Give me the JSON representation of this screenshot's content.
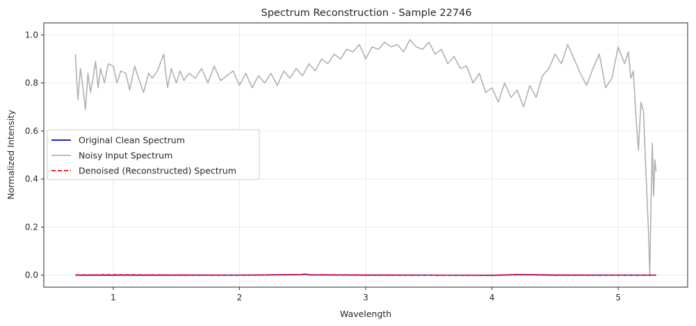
{
  "chart_data": {
    "type": "line",
    "title": "Spectrum Reconstruction - Sample 22746",
    "xlabel": "Wavelength",
    "ylabel": "Normalized Intensity",
    "xlim": [
      0.45,
      5.55
    ],
    "ylim": [
      -0.05,
      1.05
    ],
    "xticks": [
      1,
      2,
      3,
      4,
      5
    ],
    "yticks": [
      0.0,
      0.2,
      0.4,
      0.6,
      0.8,
      1.0
    ],
    "xtick_labels": [
      "1",
      "2",
      "3",
      "4",
      "5"
    ],
    "ytick_labels": [
      "0.0",
      "0.2",
      "0.4",
      "0.6",
      "0.8",
      "1.0"
    ],
    "grid": true,
    "legend_position": "center-left",
    "series": [
      {
        "name": "Original Clean Spectrum",
        "color": "#0000cc",
        "style": "solid",
        "x": [
          0.7,
          1.0,
          1.5,
          2.0,
          2.5,
          2.52,
          2.55,
          3.0,
          3.5,
          4.0,
          4.2,
          4.5,
          5.0,
          5.3
        ],
        "y": [
          0.0,
          0.0,
          0.0,
          0.0,
          0.002,
          0.004,
          0.001,
          0.0,
          0.0,
          -0.001,
          0.002,
          0.0,
          0.0,
          0.0
        ]
      },
      {
        "name": "Noisy Input Spectrum",
        "color": "#b0b0b0",
        "style": "solid",
        "x": [
          0.7,
          0.72,
          0.74,
          0.76,
          0.78,
          0.8,
          0.82,
          0.84,
          0.86,
          0.88,
          0.9,
          0.93,
          0.96,
          1.0,
          1.03,
          1.06,
          1.1,
          1.13,
          1.17,
          1.2,
          1.24,
          1.28,
          1.31,
          1.35,
          1.4,
          1.43,
          1.46,
          1.5,
          1.53,
          1.56,
          1.6,
          1.65,
          1.7,
          1.75,
          1.8,
          1.85,
          1.9,
          1.95,
          2.0,
          2.05,
          2.1,
          2.15,
          2.2,
          2.25,
          2.3,
          2.35,
          2.4,
          2.45,
          2.5,
          2.55,
          2.6,
          2.65,
          2.7,
          2.75,
          2.8,
          2.85,
          2.9,
          2.95,
          3.0,
          3.05,
          3.1,
          3.15,
          3.2,
          3.25,
          3.3,
          3.35,
          3.4,
          3.45,
          3.5,
          3.55,
          3.6,
          3.65,
          3.7,
          3.75,
          3.8,
          3.85,
          3.9,
          3.95,
          4.0,
          4.05,
          4.1,
          4.15,
          4.2,
          4.25,
          4.3,
          4.35,
          4.4,
          4.45,
          4.5,
          4.55,
          4.6,
          4.65,
          4.7,
          4.75,
          4.8,
          4.85,
          4.9,
          4.95,
          5.0,
          5.05,
          5.08,
          5.1,
          5.12,
          5.14,
          5.16,
          5.18,
          5.2,
          5.22,
          5.24,
          5.25,
          5.26,
          5.27,
          5.28,
          5.29,
          5.3
        ],
        "y": [
          0.92,
          0.73,
          0.86,
          0.78,
          0.69,
          0.84,
          0.76,
          0.82,
          0.89,
          0.78,
          0.86,
          0.8,
          0.88,
          0.87,
          0.8,
          0.85,
          0.84,
          0.77,
          0.87,
          0.82,
          0.76,
          0.84,
          0.82,
          0.85,
          0.92,
          0.78,
          0.86,
          0.8,
          0.85,
          0.81,
          0.84,
          0.82,
          0.86,
          0.8,
          0.87,
          0.81,
          0.83,
          0.85,
          0.79,
          0.84,
          0.78,
          0.83,
          0.8,
          0.84,
          0.79,
          0.85,
          0.82,
          0.86,
          0.83,
          0.88,
          0.85,
          0.9,
          0.88,
          0.92,
          0.9,
          0.94,
          0.93,
          0.96,
          0.9,
          0.95,
          0.94,
          0.97,
          0.95,
          0.96,
          0.93,
          0.98,
          0.95,
          0.94,
          0.97,
          0.92,
          0.94,
          0.88,
          0.91,
          0.86,
          0.87,
          0.8,
          0.84,
          0.76,
          0.78,
          0.72,
          0.8,
          0.74,
          0.77,
          0.7,
          0.79,
          0.74,
          0.83,
          0.86,
          0.92,
          0.88,
          0.96,
          0.9,
          0.84,
          0.79,
          0.86,
          0.92,
          0.78,
          0.82,
          0.95,
          0.88,
          0.93,
          0.82,
          0.85,
          0.66,
          0.52,
          0.72,
          0.68,
          0.42,
          0.18,
          0.0,
          0.3,
          0.55,
          0.33,
          0.48,
          0.43
        ]
      },
      {
        "name": "Denoised (Reconstructed) Spectrum",
        "color": "#ff0000",
        "style": "dashed",
        "x": [
          0.7,
          1.0,
          1.5,
          2.0,
          2.5,
          2.52,
          2.55,
          3.0,
          3.5,
          4.0,
          4.2,
          4.5,
          5.0,
          5.3
        ],
        "y": [
          0.001,
          0.002,
          0.001,
          0.0,
          0.003,
          0.005,
          0.002,
          0.001,
          0.0,
          0.0,
          0.003,
          0.001,
          0.0,
          0.0
        ]
      }
    ]
  }
}
